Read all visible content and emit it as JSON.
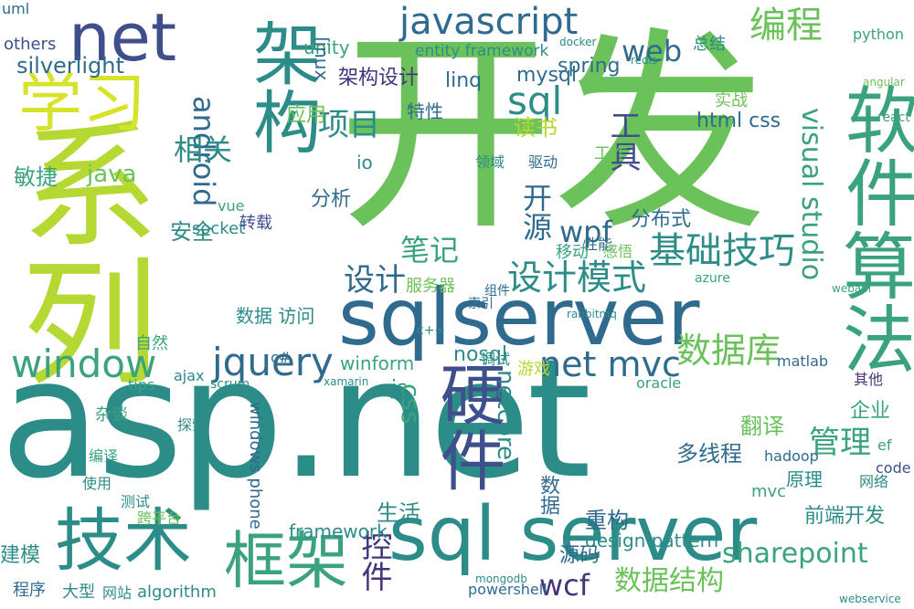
{
  "colors": {
    "background": "#ffffff",
    "palette": [
      "#2f6b8e",
      "#2c8c88",
      "#3aa37d",
      "#6cc25a",
      "#b5d832",
      "#d6e32a",
      "#3f4f8c",
      "#45347a"
    ]
  },
  "words": [
    {
      "text": "asp.net",
      "color": "#2c8c88"
    },
    {
      "text": "系列",
      "color": "#b5d832"
    },
    {
      "text": "开发",
      "color": "#6cc25a"
    },
    {
      "text": "sqlserver",
      "color": "#2f6b8e"
    },
    {
      "text": "sql server",
      "color": "#2c8c88"
    },
    {
      "text": "算法",
      "color": "#3aa37d"
    },
    {
      "text": "软件",
      "color": "#3aa37d"
    },
    {
      "text": "架构",
      "color": "#2c8c88"
    },
    {
      "text": "学习",
      "color": "#d6e32a"
    },
    {
      "text": "硬件",
      "color": "#3f4f8c"
    },
    {
      "text": "技术",
      "color": "#2c8c88"
    },
    {
      "text": "框架",
      "color": "#3aa37d"
    },
    {
      "text": "net",
      "color": "#3f4f8c"
    },
    {
      "text": "javascript",
      "color": "#2f6b8e"
    },
    {
      "text": "编程",
      "color": "#6cc25a"
    },
    {
      "text": "基础技巧",
      "color": "#2c8c88"
    },
    {
      "text": "设计模式",
      "color": "#2c8c88"
    },
    {
      "text": "window",
      "color": "#3aa37d"
    },
    {
      "text": "jquery",
      "color": "#2f6b8e"
    },
    {
      "text": "数据库",
      "color": "#6cc25a"
    },
    {
      "text": "visual studio",
      "color": "#3aa37d"
    },
    {
      "text": "net mvc",
      "color": "#2f6b8e"
    },
    {
      "text": "wcf",
      "color": "#45347a"
    },
    {
      "text": "sharepoint",
      "color": "#3aa37d"
    },
    {
      "text": "数据结构",
      "color": "#6cc25a"
    },
    {
      "text": "sql",
      "color": "#2c8c88"
    },
    {
      "text": "web",
      "color": "#2f6b8e"
    },
    {
      "text": "android",
      "color": "#2f6b8e"
    },
    {
      "text": "项目",
      "color": "#2c8c88"
    },
    {
      "text": "开源",
      "color": "#2f6b8e"
    },
    {
      "text": "笔记",
      "color": "#3aa37d"
    },
    {
      "text": "设计",
      "color": "#2f6b8e"
    },
    {
      "text": "wpf",
      "color": "#2f6b8e"
    },
    {
      "text": "silverlight",
      "color": "#2f6b8e"
    },
    {
      "text": "工具",
      "color": "#3f4f8c"
    },
    {
      "text": "管理",
      "color": "#3aa37d"
    },
    {
      "text": "控件",
      "color": "#45347a"
    },
    {
      "text": "linq",
      "color": "#2f6b8e"
    },
    {
      "text": "unity",
      "color": "#3aa37d"
    },
    {
      "text": "mysql",
      "color": "#2f6b8e"
    },
    {
      "text": "css",
      "color": "#3aa37d"
    },
    {
      "text": "生活",
      "color": "#2c8c88"
    },
    {
      "text": "重构",
      "color": "#2f6b8e"
    },
    {
      "text": "相关",
      "color": "#2c8c88"
    },
    {
      "text": "java",
      "color": "#6cc25a"
    },
    {
      "text": "敏捷",
      "color": "#3aa37d"
    },
    {
      "text": "应用",
      "color": "#6cc25a"
    },
    {
      "text": "linux",
      "color": "#2f6b8e"
    },
    {
      "text": "架构设计",
      "color": "#45347a"
    },
    {
      "text": "entity framework",
      "color": "#2c8c88"
    },
    {
      "text": "spring",
      "color": "#2f6b8e"
    },
    {
      "text": "特性",
      "color": "#2f6b8e"
    },
    {
      "text": "读书",
      "color": "#b5d832"
    },
    {
      "text": "html css",
      "color": "#2f6b8e"
    },
    {
      "text": "分布式",
      "color": "#2f6b8e"
    },
    {
      "text": "前端开发",
      "color": "#2c8c88"
    },
    {
      "text": "多线程",
      "color": "#2f6b8e"
    },
    {
      "text": "翻译",
      "color": "#6cc25a"
    },
    {
      "text": "企业",
      "color": "#3aa37d"
    },
    {
      "text": "netcore",
      "color": "#2c8c88"
    },
    {
      "text": "framework",
      "color": "#2c8c88"
    },
    {
      "text": "design pattern",
      "color": "#2c8c88"
    },
    {
      "text": "分析",
      "color": "#2f6b8e"
    },
    {
      "text": "安全",
      "color": "#2c8c88"
    },
    {
      "text": "socket",
      "color": "#2c8c88"
    },
    {
      "text": "winform",
      "color": "#3aa37d"
    },
    {
      "text": "nosql",
      "color": "#2c8c88"
    },
    {
      "text": "数据 访问",
      "color": "#2c8c88"
    },
    {
      "text": "原理",
      "color": "#2c8c88"
    },
    {
      "text": "源码",
      "color": "#2f6b8e"
    },
    {
      "text": "建模",
      "color": "#2c8c88"
    },
    {
      "text": "程序",
      "color": "#2f6b8e"
    },
    {
      "text": "大型",
      "color": "#2c8c88"
    },
    {
      "text": "网站",
      "color": "#2c8c88"
    },
    {
      "text": "algorithm",
      "color": "#2c8c88"
    },
    {
      "text": "powershell",
      "color": "#2f6b8e"
    },
    {
      "text": "uml",
      "color": "#2f6b8e"
    },
    {
      "text": "others",
      "color": "#3f4f8c"
    },
    {
      "text": "python",
      "color": "#3aa37d"
    },
    {
      "text": "总结",
      "color": "#2c8c88"
    },
    {
      "text": "实战",
      "color": "#6cc25a"
    },
    {
      "text": "服务器",
      "color": "#6cc25a"
    },
    {
      "text": "游戏",
      "color": "#b5d832"
    },
    {
      "text": "数据",
      "color": "#2f6b8e"
    },
    {
      "text": "性能",
      "color": "#2f6b8e"
    },
    {
      "text": "移动",
      "color": "#3aa37d"
    },
    {
      "text": "感悟",
      "color": "#6cc25a"
    },
    {
      "text": "mvc",
      "color": "#3aa37d"
    },
    {
      "text": "code",
      "color": "#3f4f8c"
    },
    {
      "text": "hadoop",
      "color": "#2f6b8e"
    },
    {
      "text": "其他",
      "color": "#45347a"
    },
    {
      "text": "网络",
      "color": "#2c8c88"
    },
    {
      "text": "windows phone",
      "color": "#2f6b8e"
    },
    {
      "text": "matlab",
      "color": "#2f6b8e"
    },
    {
      "text": "oracle",
      "color": "#3aa37d"
    },
    {
      "text": "vue",
      "color": "#3aa37d"
    },
    {
      "text": "转载",
      "color": "#3f4f8c"
    },
    {
      "text": "js",
      "color": "#2c8c88"
    },
    {
      "text": "io",
      "color": "#2c8c88"
    },
    {
      "text": "工作",
      "color": "#6cc25a"
    },
    {
      "text": "驱动",
      "color": "#2f6b8e"
    },
    {
      "text": "领域",
      "color": "#2c8c88"
    },
    {
      "text": "组件",
      "color": "#2f6b8e"
    },
    {
      "text": "索引",
      "color": "#2f6b8e"
    },
    {
      "text": "调试",
      "color": "#2c8c88"
    },
    {
      "text": "杂谈",
      "color": "#3aa37d"
    },
    {
      "text": "编译",
      "color": "#3aa37d"
    },
    {
      "text": "探索",
      "color": "#2c8c88"
    },
    {
      "text": "使用",
      "color": "#2c8c88"
    },
    {
      "text": "测试",
      "color": "#2c8c88"
    },
    {
      "text": "跨平台",
      "color": "#6cc25a"
    },
    {
      "text": "自然",
      "color": "#3aa37d"
    },
    {
      "text": "c#",
      "color": "#2f6b8e"
    },
    {
      "text": "ajax",
      "color": "#2c8c88"
    },
    {
      "text": "tips",
      "color": "#3aa37d"
    },
    {
      "text": "scrum",
      "color": "#2c8c88"
    },
    {
      "text": "c++",
      "color": "#2c8c88"
    },
    {
      "text": "ef",
      "color": "#3aa37d"
    },
    {
      "text": "react",
      "color": "#3aa37d"
    },
    {
      "text": "webapi",
      "color": "#3aa37d"
    },
    {
      "text": "rabbitmq",
      "color": "#2c8c88"
    },
    {
      "text": "angular",
      "color": "#6cc25a"
    },
    {
      "text": "redis",
      "color": "#2c8c88"
    },
    {
      "text": "docker",
      "color": "#2c8c88"
    },
    {
      "text": "azure",
      "color": "#3aa37d"
    },
    {
      "text": "xamarin",
      "color": "#2c8c88"
    },
    {
      "text": "mongodb",
      "color": "#2c8c88"
    },
    {
      "text": "webservice",
      "color": "#2c8c88"
    }
  ]
}
